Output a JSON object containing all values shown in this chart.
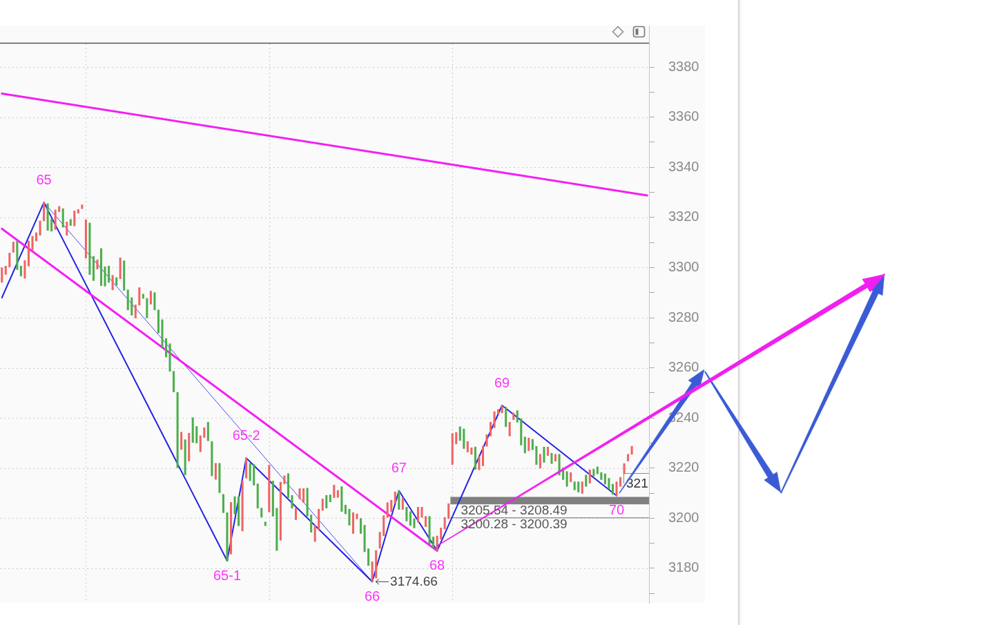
{
  "chart_data": {
    "type": "candlestick",
    "categories": [
      null,
      null,
      null,
      null,
      null,
      null,
      null,
      null,
      null,
      null,
      null,
      null,
      null,
      null,
      null,
      null,
      null,
      null,
      null,
      null,
      null,
      null,
      null,
      null,
      null,
      null,
      null,
      null,
      null,
      null,
      null,
      null,
      null,
      null,
      null,
      null,
      null,
      null,
      null,
      null,
      null,
      null,
      null,
      null,
      null,
      null,
      null,
      null,
      null,
      null,
      null,
      null,
      null,
      null,
      null,
      null,
      null,
      null,
      null,
      null,
      null,
      null,
      null,
      null,
      null,
      null,
      null,
      null,
      null,
      null,
      null,
      null,
      null,
      null,
      null,
      null,
      null,
      null,
      null,
      null,
      null,
      null,
      null,
      null,
      null,
      null,
      null,
      null,
      null,
      null,
      null,
      null,
      null,
      null,
      null,
      null,
      null,
      null,
      null,
      null,
      null,
      null,
      null,
      null,
      null,
      null,
      null,
      null,
      null,
      null,
      null,
      null,
      null,
      null,
      null,
      null,
      null,
      null,
      null,
      null,
      null,
      null,
      null,
      null,
      null,
      null,
      null,
      null,
      null,
      null,
      null,
      null,
      null,
      null,
      null,
      null,
      null,
      null,
      null,
      null,
      null,
      null,
      null,
      null,
      null,
      null,
      null,
      null,
      null,
      null,
      null,
      null,
      null,
      null,
      null,
      null,
      null,
      null,
      null,
      null,
      null,
      null,
      null,
      null,
      null,
      null,
      null,
      null,
      null,
      null
    ],
    "ohlc": [
      [
        3294.1,
        3299.9,
        3294.1,
        3299.9
      ],
      [
        3297.3,
        3300.6,
        3297.3,
        3300.6
      ],
      [
        3300.3,
        3305.8,
        3300.3,
        3305.8
      ],
      [
        3306.1,
        3310.2,
        3306.1,
        3310.2
      ],
      [
        3310.6,
        3310.6,
        3299.2,
        3299.2
      ],
      [
        3300.6,
        3300.6,
        3296.6,
        3296.6
      ],
      [
        3295.7,
        3302.8,
        3295.7,
        3302.8
      ],
      [
        3300.6,
        3310.6,
        3300.6,
        3310.6
      ],
      [
        3307.0,
        3312.5,
        3307.0,
        3312.5
      ],
      [
        3310.6,
        3313.9,
        3310.6,
        3313.9
      ],
      [
        3312.9,
        3318.6,
        3312.9,
        3318.6
      ],
      [
        3318.6,
        3326,
        3318.6,
        3326
      ],
      [
        3325.5,
        3325.5,
        3314.8,
        3314.8
      ],
      [
        3319.4,
        3319.4,
        3314.5,
        3314.5
      ],
      [
        3315.2,
        3323.0,
        3315.2,
        3323.0
      ],
      [
        3322.3,
        3324.4,
        3322.3,
        3324.4
      ],
      [
        3323.5,
        3323.5,
        3316.1,
        3316.1
      ],
      [
        3312.9,
        3318.2,
        3312.9,
        3318.2
      ],
      [
        3319.2,
        3319.2,
        3316.8,
        3316.8
      ],
      [
        3316.6,
        3322.6,
        3316.6,
        3322.6
      ],
      [
        3321.7,
        3323.2,
        3321.7,
        3323.2
      ],
      [
        3323.5,
        3325.0,
        3323.5,
        3325.0
      ],
      [
        3303.8,
        3319.1,
        3303.8,
        3319.1
      ],
      [
        3317.8,
        3317.8,
        3297.2,
        3297.2
      ],
      [
        3304.5,
        3304.5,
        3294.8,
        3294.8
      ],
      [
        3299.4,
        3303.1,
        3299.4,
        3303.1
      ],
      [
        3307.6,
        3307.6,
        3292.8,
        3292.8
      ],
      [
        3300.3,
        3300.3,
        3292.6,
        3292.6
      ],
      [
        3300.6,
        3300.6,
        3294.1,
        3294.1
      ],
      [
        3291.1,
        3296.9,
        3291.1,
        3296.9
      ],
      [
        3296.0,
        3296.0,
        3292.9,
        3292.9
      ],
      [
        3295.5,
        3303.9,
        3295.5,
        3303.9
      ],
      [
        3302.7,
        3302.7,
        3290.9,
        3290.9
      ],
      [
        3291.1,
        3291.1,
        3283.1,
        3283.1
      ],
      [
        3288.0,
        3288.0,
        3281.0,
        3281.0
      ],
      [
        3279.9,
        3285.1,
        3279.9,
        3285.1
      ],
      [
        3285.0,
        3292.0,
        3285.0,
        3292.0
      ],
      [
        3289.4,
        3289.4,
        3287.7,
        3287.7
      ],
      [
        3287.7,
        3287.7,
        3279.9,
        3279.9
      ],
      [
        3285.4,
        3290.6,
        3285.4,
        3290.6
      ],
      [
        3290.0,
        3290.0,
        3283.1,
        3283.1
      ],
      [
        3283.1,
        3283.1,
        3273.9,
        3273.9
      ],
      [
        3279.2,
        3279.2,
        3268.2,
        3268.2
      ],
      [
        3271.7,
        3271.7,
        3264.3,
        3264.3
      ],
      [
        3269.6,
        3269.6,
        3258.6,
        3258.6
      ],
      [
        3258.6,
        3258.6,
        3250.4,
        3250.4
      ],
      [
        3250.2,
        3250.2,
        3220.1,
        3220.1
      ],
      [
        3227.4,
        3234.3,
        3227.4,
        3234.3
      ],
      [
        3231.3,
        3231.3,
        3217.3,
        3217.3
      ],
      [
        3222.8,
        3233.9,
        3222.8,
        3233.9
      ],
      [
        3240.1,
        3240.1,
        3230.2,
        3230.2
      ],
      [
        3236.6,
        3236.6,
        3230.0,
        3230.0
      ],
      [
        3226.5,
        3232.9,
        3226.5,
        3232.9
      ],
      [
        3232.2,
        3236.1,
        3232.2,
        3236.1
      ],
      [
        3238.3,
        3238.3,
        3230.9,
        3230.9
      ],
      [
        3230.6,
        3230.6,
        3216.9,
        3216.9
      ],
      [
        3215.5,
        3221.9,
        3215.5,
        3221.9
      ],
      [
        3221.9,
        3221.9,
        3210.2,
        3210.2
      ],
      [
        3209.5,
        3209.5,
        3202.2,
        3202.2
      ],
      [
        3202.2,
        3202.2,
        3183,
        3183
      ],
      [
        3185.7,
        3206.3,
        3185.7,
        3206.3
      ],
      [
        3208.6,
        3208.6,
        3201.7,
        3201.7
      ],
      [
        3208.6,
        3208.6,
        3197.0,
        3197.0
      ],
      [
        3194.9,
        3214.8,
        3194.9,
        3214.8
      ],
      [
        3216.0,
        3224,
        3216.0,
        3224
      ],
      [
        3221.9,
        3221.9,
        3215.0,
        3215.0
      ],
      [
        3221.5,
        3221.5,
        3213.2,
        3213.2
      ],
      [
        3213.7,
        3213.7,
        3204.0,
        3204.0
      ],
      [
        3204.0,
        3204.0,
        3200.4,
        3200.4
      ],
      [
        3198.5,
        3198.5,
        3197.0,
        3197.0
      ],
      [
        3202.5,
        3221.2,
        3202.5,
        3221.2
      ],
      [
        3214.8,
        3214.8,
        3200.8,
        3200.8
      ],
      [
        3204.0,
        3204.0,
        3187.1,
        3187.1
      ],
      [
        3191.2,
        3214.4,
        3191.2,
        3214.4
      ],
      [
        3213.7,
        3216.9,
        3213.7,
        3216.9
      ],
      [
        3217.8,
        3217.8,
        3208.2,
        3208.2
      ],
      [
        3209.1,
        3209.1,
        3204.0,
        3204.0
      ],
      [
        3199.4,
        3204.0,
        3199.4,
        3204.0
      ],
      [
        3207.7,
        3211.8,
        3207.7,
        3211.8
      ],
      [
        3206.3,
        3211.8,
        3206.3,
        3211.8
      ],
      [
        3212.0,
        3212.0,
        3200.8,
        3200.8
      ],
      [
        3201.3,
        3201.3,
        3194.4,
        3194.4
      ],
      [
        3190.7,
        3197.2,
        3190.7,
        3197.2
      ],
      [
        3195.4,
        3203.6,
        3195.4,
        3203.6
      ],
      [
        3203.1,
        3207.7,
        3203.1,
        3207.7
      ],
      [
        3209.1,
        3209.1,
        3204.0,
        3204.0
      ],
      [
        3209.3,
        3209.3,
        3206.5,
        3206.5
      ],
      [
        3208.2,
        3213.2,
        3208.2,
        3213.2
      ],
      [
        3208.3,
        3211.1,
        3208.3,
        3211.1
      ],
      [
        3212.6,
        3212.6,
        3202.7,
        3202.7
      ],
      [
        3205.2,
        3205.2,
        3201.7,
        3201.7
      ],
      [
        3203.6,
        3203.6,
        3197.2,
        3197.2
      ],
      [
        3193.9,
        3202.2,
        3193.9,
        3202.2
      ],
      [
        3199.7,
        3201.7,
        3199.7,
        3201.7
      ],
      [
        3199.9,
        3199.9,
        3193.9,
        3193.9
      ],
      [
        3197.2,
        3197.2,
        3186.6,
        3186.6
      ],
      [
        3187.8,
        3187.8,
        3181.1,
        3181.1
      ],
      [
        3174.66,
        3182.6,
        3174.66,
        3182.6
      ],
      [
        3176.1,
        3187.1,
        3176.1,
        3187.1
      ],
      [
        3188.0,
        3194.4,
        3188.0,
        3194.4
      ],
      [
        3193.0,
        3201.0,
        3193.0,
        3201.0
      ],
      [
        3200.3,
        3206.2,
        3200.3,
        3206.2
      ],
      [
        3202.6,
        3207.2,
        3202.6,
        3207.2
      ],
      [
        3206.0,
        3210.5,
        3206.0,
        3210.5
      ],
      [
        3211,
        3211,
        3203.5,
        3203.5
      ],
      [
        3203.5,
        3208.1,
        3203.5,
        3208.1
      ],
      [
        3204.4,
        3204.4,
        3198.9,
        3198.9
      ],
      [
        3202.6,
        3202.6,
        3197.1,
        3197.1
      ],
      [
        3199.8,
        3199.8,
        3196.1,
        3196.1
      ],
      [
        3198.4,
        3204.4,
        3198.4,
        3204.4
      ],
      [
        3200.3,
        3204.4,
        3200.3,
        3204.4
      ],
      [
        3196.6,
        3200.7,
        3196.6,
        3200.7
      ],
      [
        3200.7,
        3200.7,
        3189.7,
        3189.7
      ],
      [
        3192.5,
        3192.5,
        3188.0,
        3188.0
      ],
      [
        3187,
        3192.9,
        3187,
        3192.9
      ],
      [
        3191.6,
        3196.1,
        3191.6,
        3196.1
      ],
      [
        3195.7,
        3200.3,
        3195.7,
        3200.3
      ],
      [
        3199.8,
        3205.8,
        3199.8,
        3205.8
      ],
      [
        3221.4,
        3233.8,
        3221.4,
        3233.8
      ],
      [
        3229.6,
        3234.2,
        3229.6,
        3234.2
      ],
      [
        3236.5,
        3236.5,
        3231.0,
        3231.0
      ],
      [
        3235.6,
        3235.6,
        3227.8,
        3227.8
      ],
      [
        3226.4,
        3230.6,
        3226.4,
        3230.6
      ],
      [
        3225.5,
        3228.1,
        3225.5,
        3228.1
      ],
      [
        3228.4,
        3228.4,
        3219.5,
        3219.5
      ],
      [
        3219.3,
        3224.6,
        3219.3,
        3224.6
      ],
      [
        3220.9,
        3228.7,
        3220.9,
        3228.7
      ],
      [
        3228.7,
        3233.3,
        3228.7,
        3233.3
      ],
      [
        3232.8,
        3238.3,
        3232.8,
        3238.3
      ],
      [
        3236.1,
        3242.5,
        3236.1,
        3242.5
      ],
      [
        3241.6,
        3243.4,
        3241.6,
        3243.4
      ],
      [
        3242.0,
        3245,
        3242.0,
        3245
      ],
      [
        3244.3,
        3244.3,
        3236.5,
        3236.5
      ],
      [
        3232.8,
        3238.3,
        3232.8,
        3238.3
      ],
      [
        3239.3,
        3242.0,
        3239.3,
        3242.0
      ],
      [
        3242.9,
        3242.9,
        3238.3,
        3238.3
      ],
      [
        3239.7,
        3239.7,
        3229.2,
        3229.2
      ],
      [
        3232.4,
        3232.4,
        3226.0,
        3226.0
      ],
      [
        3226.9,
        3232.0,
        3226.9,
        3232.0
      ],
      [
        3231.5,
        3231.5,
        3227.3,
        3227.3
      ],
      [
        3228.7,
        3228.7,
        3221.4,
        3221.4
      ],
      [
        3220.0,
        3225.5,
        3220.0,
        3225.5
      ],
      [
        3228.4,
        3228.4,
        3222.3,
        3222.3
      ],
      [
        3225.0,
        3228.4,
        3225.0,
        3228.4
      ],
      [
        3225.9,
        3225.9,
        3221.8,
        3221.8
      ],
      [
        3222.8,
        3225.5,
        3222.8,
        3225.5
      ],
      [
        3225.5,
        3225.5,
        3217.2,
        3217.2
      ],
      [
        3220.0,
        3220.0,
        3215.4,
        3215.4
      ],
      [
        3218.6,
        3218.6,
        3212.7,
        3212.7
      ],
      [
        3214.5,
        3218.2,
        3214.5,
        3218.2
      ],
      [
        3214.5,
        3214.5,
        3211.3,
        3211.3
      ],
      [
        3214.5,
        3214.5,
        3210.4,
        3210.4
      ],
      [
        3209.9,
        3214.5,
        3209.9,
        3214.5
      ],
      [
        3217.2,
        3217.2,
        3212.7,
        3212.7
      ],
      [
        3214.0,
        3219.3,
        3214.0,
        3219.3
      ],
      [
        3219.5,
        3219.5,
        3216.8,
        3216.8
      ],
      [
        3220.5,
        3220.5,
        3217.7,
        3217.7
      ],
      [
        3218.2,
        3218.2,
        3215.4,
        3215.4
      ],
      [
        3217.7,
        3217.7,
        3213.6,
        3213.6
      ],
      [
        3215.9,
        3215.9,
        3211.7,
        3211.7
      ],
      [
        3213.6,
        3213.6,
        3209.5,
        3209.5
      ],
      [
        3209,
        3214.5,
        3209,
        3214.5
      ],
      [
        3212.7,
        3216.3,
        3212.7,
        3216.3
      ],
      [
        3217.7,
        3221.8,
        3217.7,
        3221.8
      ],
      [
        3222.8,
        3225.5,
        3222.8,
        3225.5
      ],
      [
        3225.5,
        3228.7,
        3225.5,
        3228.7
      ],
      null,
      null,
      null,
      null
    ],
    "colors": [
      "#f06464",
      "#f06464",
      "#f06464",
      "#f06464",
      "#4cae4c",
      "#4cae4c",
      "#f06464",
      "#f06464",
      "#f06464",
      "#f06464",
      "#f06464",
      "#f06464",
      "#4cae4c",
      "#4cae4c",
      "#f06464",
      "#f06464",
      "#4cae4c",
      "#f06464",
      "#4cae4c",
      "#f06464",
      "#f06464",
      "#f06464",
      "#f06464",
      "#4cae4c",
      "#4cae4c",
      "#f06464",
      "#4cae4c",
      "#4cae4c",
      "#4cae4c",
      "#f06464",
      "#4cae4c",
      "#f06464",
      "#4cae4c",
      "#4cae4c",
      "#4cae4c",
      "#f06464",
      "#f06464",
      "#4cae4c",
      "#4cae4c",
      "#f06464",
      "#4cae4c",
      "#4cae4c",
      "#4cae4c",
      "#4cae4c",
      "#4cae4c",
      "#4cae4c",
      "#4cae4c",
      "#f06464",
      "#4cae4c",
      "#f06464",
      "#4cae4c",
      "#4cae4c",
      "#f06464",
      "#f06464",
      "#4cae4c",
      "#4cae4c",
      "#f06464",
      "#4cae4c",
      "#4cae4c",
      "#4cae4c",
      "#f06464",
      "#4cae4c",
      "#4cae4c",
      "#f06464",
      "#f06464",
      "#4cae4c",
      "#4cae4c",
      "#4cae4c",
      "#4cae4c",
      "#4cae4c",
      "#f06464",
      "#4cae4c",
      "#4cae4c",
      "#f06464",
      "#f06464",
      "#4cae4c",
      "#4cae4c",
      "#f06464",
      "#f06464",
      "#f06464",
      "#4cae4c",
      "#4cae4c",
      "#f06464",
      "#f06464",
      "#f06464",
      "#4cae4c",
      "#4cae4c",
      "#f06464",
      "#f06464",
      "#4cae4c",
      "#4cae4c",
      "#4cae4c",
      "#f06464",
      "#f06464",
      "#4cae4c",
      "#4cae4c",
      "#4cae4c",
      "#f06464",
      "#f06464",
      "#f06464",
      "#f06464",
      "#f06464",
      "#f06464",
      "#f06464",
      "#4cae4c",
      "#f06464",
      "#4cae4c",
      "#4cae4c",
      "#4cae4c",
      "#f06464",
      "#f06464",
      "#f06464",
      "#4cae4c",
      "#4cae4c",
      "#f06464",
      "#f06464",
      "#f06464",
      "#f06464",
      "#f06464",
      "#f06464",
      "#4cae4c",
      "#4cae4c",
      "#f06464",
      "#f06464",
      "#4cae4c",
      "#f06464",
      "#f06464",
      "#f06464",
      "#f06464",
      "#f06464",
      "#f06464",
      "#f06464",
      "#4cae4c",
      "#f06464",
      "#f06464",
      "#4cae4c",
      "#4cae4c",
      "#4cae4c",
      "#f06464",
      "#4cae4c",
      "#4cae4c",
      "#f06464",
      "#4cae4c",
      "#f06464",
      "#4cae4c",
      "#f06464",
      "#4cae4c",
      "#4cae4c",
      "#4cae4c",
      "#f06464",
      "#4cae4c",
      "#4cae4c",
      "#f06464",
      "#4cae4c",
      "#f06464",
      "#4cae4c",
      "#4cae4c",
      "#4cae4c",
      "#4cae4c",
      "#4cae4c",
      "#4cae4c",
      "#f06464",
      "#f06464",
      "#f06464",
      "#f06464",
      "#f06464",
      null,
      null,
      null,
      null
    ],
    "series": [
      {
        "type": "line",
        "color": "#f51ef5",
        "values": [
          3369.4,
          null,
          null,
          null,
          null,
          null,
          null,
          null,
          null,
          null,
          null,
          null,
          null,
          null,
          null,
          null,
          null,
          null,
          null,
          null,
          null,
          null,
          null,
          null,
          null,
          null,
          null,
          null,
          null,
          null,
          null,
          null,
          null,
          null,
          null,
          null,
          null,
          null,
          null,
          null,
          null,
          null,
          null,
          null,
          null,
          null,
          null,
          null,
          null,
          null,
          null,
          null,
          null,
          null,
          null,
          null,
          null,
          null,
          null,
          null,
          null,
          null,
          null,
          null,
          null,
          null,
          null,
          null,
          null,
          null,
          null,
          null,
          null,
          null,
          null,
          null,
          null,
          null,
          null,
          null,
          null,
          null,
          null,
          null,
          null,
          null,
          null,
          null,
          null,
          null,
          null,
          null,
          null,
          null,
          null,
          null,
          null,
          null,
          null,
          null,
          null,
          null,
          null,
          null,
          null,
          null,
          null,
          null,
          null,
          null,
          null,
          null,
          null,
          null,
          null,
          null,
          null,
          null,
          null,
          null,
          null,
          null,
          null,
          null,
          null,
          null,
          null,
          null,
          null,
          null,
          null,
          null,
          null,
          null,
          null,
          null,
          null,
          null,
          null,
          null,
          null,
          null,
          null,
          null,
          null,
          null,
          null,
          null,
          null,
          null,
          null,
          null,
          null,
          null,
          null,
          null,
          null,
          null,
          null,
          null,
          null,
          null,
          null,
          null,
          null,
          null,
          null,
          null,
          null,
          3328.8
        ]
      },
      {
        "type": "line",
        "color": "#f51ef5",
        "values": [
          3315.5,
          null,
          null,
          null,
          null,
          null,
          null,
          null,
          null,
          null,
          null,
          null,
          null,
          null,
          null,
          null,
          null,
          null,
          null,
          null,
          null,
          null,
          null,
          null,
          null,
          null,
          null,
          null,
          null,
          null,
          null,
          null,
          null,
          null,
          null,
          null,
          null,
          null,
          null,
          null,
          null,
          null,
          null,
          null,
          null,
          null,
          null,
          null,
          null,
          null,
          null,
          null,
          null,
          null,
          null,
          null,
          null,
          null,
          null,
          null,
          null,
          null,
          null,
          null,
          null,
          null,
          null,
          null,
          null,
          null,
          null,
          null,
          null,
          null,
          null,
          null,
          null,
          null,
          null,
          null,
          null,
          null,
          null,
          null,
          null,
          null,
          null,
          null,
          null,
          null,
          null,
          null,
          null,
          null,
          null,
          null,
          null,
          null,
          null,
          null,
          null,
          null,
          null,
          null,
          null,
          null,
          null,
          null,
          null,
          null,
          null,
          null,
          null,
          null,
          3187,
          null,
          null,
          null,
          null,
          null,
          null,
          null,
          null,
          null,
          null,
          null,
          null,
          null,
          null,
          null,
          null,
          null,
          null,
          null,
          null,
          null,
          null,
          null,
          null,
          null,
          null,
          null,
          null,
          null,
          null,
          null,
          null,
          null,
          null,
          null,
          null,
          null,
          null,
          null,
          null,
          null,
          null,
          null,
          null,
          null,
          null,
          null,
          null,
          null,
          null,
          null,
          null,
          null,
          null,
          null
        ]
      },
      {
        "type": "line",
        "color": "#2222e6",
        "values": [
          3288,
          null,
          null,
          null,
          null,
          null,
          null,
          null,
          null,
          null,
          null,
          3326,
          null,
          null,
          null,
          null,
          null,
          null,
          null,
          null,
          null,
          null,
          null,
          null,
          null,
          null,
          null,
          null,
          null,
          null,
          null,
          null,
          null,
          null,
          null,
          null,
          null,
          null,
          null,
          null,
          null,
          null,
          null,
          null,
          null,
          null,
          null,
          null,
          null,
          null,
          null,
          null,
          null,
          null,
          null,
          null,
          null,
          null,
          null,
          3183,
          null,
          null,
          null,
          null,
          3224,
          null,
          null,
          null,
          null,
          null,
          null,
          null,
          null,
          null,
          null,
          null,
          null,
          null,
          null,
          null,
          null,
          null,
          null,
          null,
          null,
          null,
          null,
          null,
          null,
          null,
          null,
          null,
          null,
          null,
          null,
          null,
          null,
          3174.66,
          null,
          null,
          null,
          null,
          null,
          null,
          3211,
          null,
          null,
          null,
          null,
          null,
          null,
          null,
          null,
          null,
          3187,
          null,
          null,
          null,
          null,
          null,
          null,
          null,
          null,
          null,
          null,
          null,
          null,
          null,
          null,
          null,
          null,
          3245,
          null,
          null,
          null,
          null,
          null,
          null,
          null,
          null,
          null,
          null,
          null,
          null,
          null,
          null,
          null,
          null,
          null,
          null,
          null,
          null,
          null,
          null,
          null,
          null,
          null,
          null,
          null,
          null,
          null,
          3209,
          null,
          null,
          null,
          null,
          null,
          null,
          null,
          null
        ]
      },
      {
        "type": "line",
        "color": "#4a4af0",
        "values": [
          null,
          null,
          null,
          null,
          null,
          null,
          null,
          null,
          null,
          null,
          null,
          3326,
          null,
          null,
          null,
          null,
          null,
          null,
          null,
          null,
          null,
          null,
          null,
          null,
          null,
          null,
          null,
          null,
          null,
          null,
          null,
          null,
          null,
          null,
          null,
          null,
          null,
          null,
          null,
          null,
          null,
          null,
          null,
          null,
          null,
          null,
          null,
          null,
          null,
          null,
          null,
          null,
          null,
          null,
          null,
          null,
          null,
          null,
          null,
          null,
          null,
          null,
          null,
          null,
          null,
          null,
          null,
          null,
          null,
          null,
          null,
          null,
          null,
          null,
          null,
          null,
          null,
          null,
          null,
          null,
          null,
          null,
          null,
          null,
          null,
          null,
          null,
          null,
          null,
          null,
          null,
          null,
          null,
          null,
          null,
          null,
          null,
          3174.66,
          null,
          null,
          null,
          null,
          null,
          null,
          null,
          null,
          null,
          null,
          null,
          null,
          null,
          null,
          null,
          null,
          null,
          null,
          null,
          null,
          null,
          null,
          null,
          null,
          null,
          null,
          null,
          null,
          null,
          null,
          null,
          null,
          null,
          null,
          null,
          null,
          null,
          null,
          null,
          null,
          null,
          null,
          null,
          null,
          null,
          null,
          null,
          null,
          null,
          null,
          null,
          null,
          null,
          null,
          null,
          null,
          null,
          null,
          null,
          null,
          null,
          null,
          null,
          null,
          null,
          null,
          null,
          null,
          null,
          null,
          null,
          null
        ]
      }
    ],
    "ylim": [
      3166.2,
      3389.4
    ],
    "yticks": [
      {
        "value": 3170,
        "label": null
      },
      3180,
      {
        "value": 3190,
        "label": null
      },
      3200,
      {
        "value": 3210,
        "label": null
      },
      3220,
      {
        "value": 3230,
        "label": null
      },
      3240,
      {
        "value": 3250,
        "label": null
      },
      3260,
      {
        "value": 3270,
        "label": null
      },
      3280,
      {
        "value": 3290,
        "label": null
      },
      3300,
      {
        "value": 3310,
        "label": null
      },
      3320,
      {
        "value": 3330,
        "label": null
      },
      3340,
      {
        "value": 3350,
        "label": null
      },
      3360,
      {
        "value": 3370,
        "label": null
      },
      3380
    ],
    "grid": true,
    "bands": [
      {
        "axis": "y",
        "from": 3205.54,
        "to": 3208.49,
        "label": "3205.54 - 3208.49",
        "color": "#808080"
      },
      {
        "axis": "y",
        "from": 3200.28,
        "to": 3200.39,
        "label": "3200.28 - 3200.39",
        "color": "#9a9a9a"
      }
    ],
    "annotations": [
      {
        "text": "65",
        "y": 3326
      },
      {
        "text": "65-1",
        "y": 3183
      },
      {
        "text": "65-2",
        "y": 3224
      },
      {
        "text": "66",
        "y": 3174.66
      },
      "3174.66",
      {
        "text": "67",
        "y": 3211
      },
      {
        "text": "68",
        "y": 3187
      },
      {
        "text": "69",
        "y": 3245
      },
      {
        "text": "70",
        "y": 3209
      },
      "321"
    ]
  }
}
